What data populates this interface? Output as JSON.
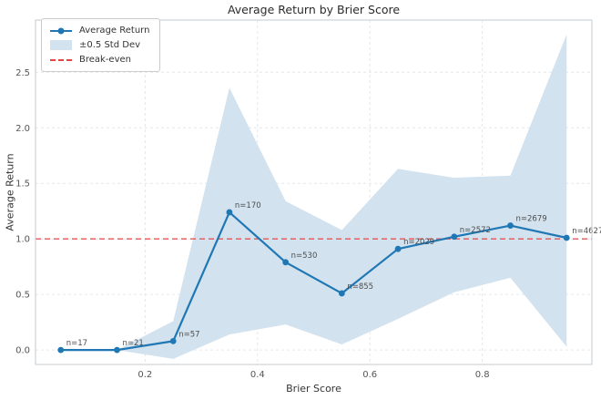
{
  "figure": {
    "title": "Average Return by Brier Score"
  },
  "legend": {
    "items": [
      {
        "id": "average-return",
        "label": "Average Return",
        "swatch": "line-marker"
      },
      {
        "id": "std-dev-band",
        "label": "±0.5 Std Dev",
        "swatch": "patch"
      },
      {
        "id": "break-even",
        "label": "Break-even",
        "swatch": "dashed-line"
      }
    ]
  },
  "chart_data": {
    "type": "line",
    "title": "Average Return by Brier Score",
    "xlabel": "Brier Score",
    "ylabel": "Average Return",
    "x": [
      0.05,
      0.15,
      0.25,
      0.35,
      0.45,
      0.55,
      0.65,
      0.75,
      0.85,
      0.95
    ],
    "series": [
      {
        "name": "Average Return",
        "values": [
          0.0,
          0.0,
          0.08,
          1.24,
          0.79,
          0.51,
          0.91,
          1.02,
          1.12,
          1.01
        ],
        "color": "#1f77b4",
        "marker": "circle"
      }
    ],
    "band": {
      "name": "±0.5 Std Dev",
      "lower": [
        0.0,
        0.0,
        -0.08,
        0.14,
        0.23,
        0.05,
        0.28,
        0.52,
        0.65,
        0.03
      ],
      "upper": [
        0.0,
        0.0,
        0.26,
        2.36,
        1.34,
        1.08,
        1.63,
        1.55,
        1.57,
        2.84
      ],
      "color": "#d2e2ef"
    },
    "break_even": {
      "label": "Break-even",
      "y": 1.0,
      "color": "#e64545",
      "style": "dashed"
    },
    "point_labels": [
      "n=17",
      "n=21",
      "n=57",
      "n=170",
      "n=530",
      "n=855",
      "n=2029",
      "n=2572",
      "n=2679",
      "n=4627"
    ],
    "xticks": [
      0.2,
      0.4,
      0.6,
      0.8
    ],
    "yticks": [
      0.0,
      0.5,
      1.0,
      1.5,
      2.0,
      2.5
    ],
    "xlim": [
      0.005,
      0.995
    ],
    "ylim": [
      -0.13,
      2.97
    ],
    "grid": true,
    "legend_position": "upper-left",
    "colors": {
      "line": "#1f77b4",
      "band": "#d2e2ef",
      "break_even": "#e64545",
      "grid": "#e3e7ea",
      "spine": "#c6cbcf",
      "tick_text": "#555555",
      "annotation_text": "#4d4d4d"
    }
  }
}
